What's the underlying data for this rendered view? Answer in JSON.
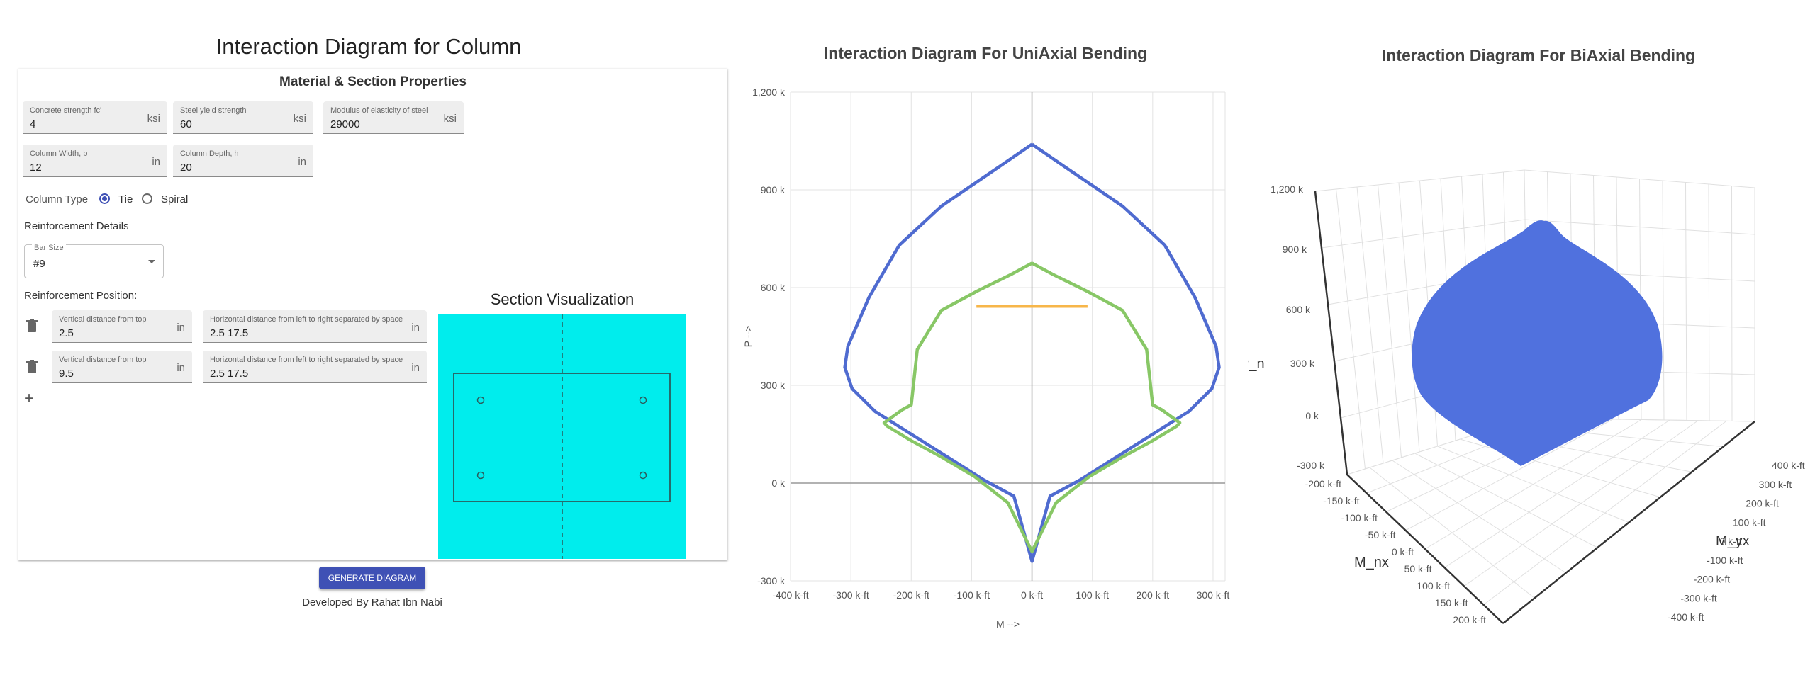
{
  "app": {
    "title": "Interaction Diagram for Column",
    "section_heading": "Material & Section Properties",
    "fields": {
      "fc": {
        "label": "Concrete strength fc'",
        "value": "4",
        "unit": "ksi"
      },
      "fy": {
        "label": "Steel yield strength",
        "value": "60",
        "unit": "ksi"
      },
      "es": {
        "label": "Modulus of elasticity of steel",
        "value": "29000",
        "unit": "ksi"
      },
      "width": {
        "label": "Column Width, b",
        "value": "12",
        "unit": "in"
      },
      "depth": {
        "label": "Column Depth, h",
        "value": "20",
        "unit": "in"
      }
    },
    "column_type": {
      "label": "Column Type",
      "options": [
        "Tie",
        "Spiral"
      ],
      "selected": "Tie"
    },
    "reinforcement_details": "Reinforcement Details",
    "bar_size": {
      "label": "Bar Size",
      "value": "#9"
    },
    "reinforcement_position": "Reinforcement Position:",
    "rows": [
      {
        "v_label": "Vertical distance from top",
        "v_value": "2.5",
        "v_unit": "in",
        "h_label": "Horizontal distance from left to right separated by space",
        "h_value": "2.5 17.5",
        "h_unit": "in"
      },
      {
        "v_label": "Vertical distance from top",
        "v_value": "9.5",
        "v_unit": "in",
        "h_label": "Horizontal distance from left to right separated by space",
        "h_value": "2.5 17.5",
        "h_unit": "in"
      }
    ],
    "add_symbol": "+",
    "viz_title": "Section Visualization",
    "generate_button": "GENERATE DIAGRAM",
    "credit": "Developed By Rahat Ibn Nabi",
    "colors": {
      "accent": "#3f51b5",
      "viz_bg": "#00eded"
    }
  },
  "chart_data": [
    {
      "type": "line",
      "title": "Interaction Diagram For UniAxial Bending",
      "xlabel": "M -->",
      "ylabel": "P -->",
      "xlim": [
        -400,
        320
      ],
      "ylim": [
        -300,
        1200
      ],
      "x_ticks": [
        "-400 k-ft",
        "-300 k-ft",
        "-200 k-ft",
        "-100 k-ft",
        "0 k-ft",
        "100 k-ft",
        "200 k-ft",
        "300 k-ft"
      ],
      "y_ticks": [
        "-300 k",
        "0 k",
        "300 k",
        "600 k",
        "900 k",
        "1,200 k"
      ],
      "grid": true,
      "series": [
        {
          "color": "#4f6bd0",
          "points": [
            [
              0,
              1040
            ],
            [
              -55,
              970
            ],
            [
              -150,
              850
            ],
            [
              -220,
              730
            ],
            [
              -270,
              570
            ],
            [
              -305,
              420
            ],
            [
              -310,
              355
            ],
            [
              -298,
              290
            ],
            [
              -260,
              220
            ],
            [
              -200,
              150
            ],
            [
              -140,
              80
            ],
            [
              -80,
              10
            ],
            [
              -30,
              -40
            ],
            [
              0,
              -240
            ],
            [
              30,
              -40
            ],
            [
              80,
              10
            ],
            [
              140,
              80
            ],
            [
              200,
              150
            ],
            [
              260,
              220
            ],
            [
              298,
              290
            ],
            [
              310,
              355
            ],
            [
              305,
              420
            ],
            [
              270,
              570
            ],
            [
              220,
              730
            ],
            [
              150,
              850
            ],
            [
              55,
              970
            ],
            [
              0,
              1040
            ]
          ]
        },
        {
          "color": "#88c766",
          "points": [
            [
              0,
              675
            ],
            [
              -35,
              640
            ],
            [
              -90,
              590
            ],
            [
              -150,
              530
            ],
            [
              -190,
              410
            ],
            [
              -200,
              240
            ],
            [
              -215,
              225
            ],
            [
              -245,
              185
            ],
            [
              -240,
              175
            ],
            [
              -200,
              130
            ],
            [
              -150,
              80
            ],
            [
              -95,
              20
            ],
            [
              -40,
              -60
            ],
            [
              0,
              -210
            ],
            [
              40,
              -60
            ],
            [
              95,
              20
            ],
            [
              150,
              80
            ],
            [
              200,
              130
            ],
            [
              240,
              175
            ],
            [
              245,
              185
            ],
            [
              215,
              225
            ],
            [
              200,
              240
            ],
            [
              190,
              410
            ],
            [
              150,
              530
            ],
            [
              90,
              590
            ],
            [
              35,
              640
            ],
            [
              0,
              675
            ]
          ]
        },
        {
          "color": "#f7b649",
          "points": [
            [
              -92,
              543
            ],
            [
              92,
              543
            ]
          ]
        }
      ]
    },
    {
      "type": "surface",
      "title": "Interaction Diagram For BiAxial Bending",
      "z_label": "P_n",
      "x_label": "M_nx",
      "y_label": "M_yx",
      "z_ticks": [
        "1,200 k",
        "900 k",
        "600 k",
        "300 k",
        "0 k",
        "-300 k"
      ],
      "x_ticks": [
        "-200 k-ft",
        "-150 k-ft",
        "-100 k-ft",
        "-50 k-ft",
        "0 k-ft",
        "50 k-ft",
        "100 k-ft",
        "150 k-ft",
        "200 k-ft"
      ],
      "y_ticks": [
        "400 k-ft",
        "300 k-ft",
        "200 k-ft",
        "100 k-ft",
        "0 k-ft",
        "-100 k-ft",
        "-200 k-ft",
        "-300 k-ft",
        "-400 k-ft"
      ],
      "surface_color": "#5071de"
    }
  ]
}
